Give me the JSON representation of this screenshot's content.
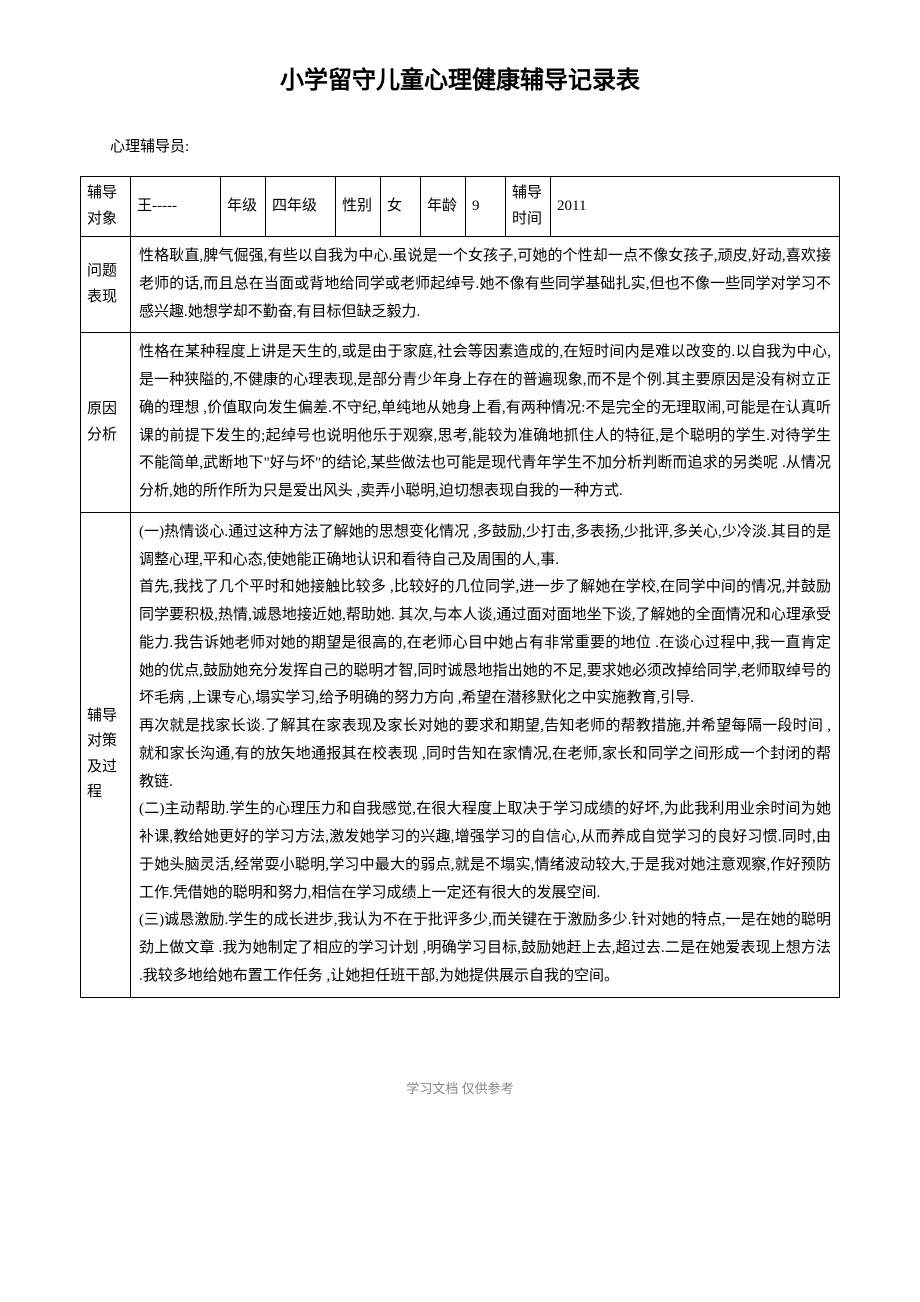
{
  "title": "小学留守儿童心理健康辅导记录表",
  "counselor_label": "心理辅导员:",
  "header": {
    "labels": {
      "subject": "辅导对象",
      "grade": "年级",
      "gender": "性别",
      "age": "年龄",
      "time": "辅导时间"
    },
    "values": {
      "subject": "王-----",
      "grade": "四年级",
      "gender": "女",
      "age": "9",
      "time": "2011"
    }
  },
  "rows": [
    {
      "label": "问题表现",
      "content": "性格耿直,脾气倔强,有些以自我为中心.虽说是一个女孩子,可她的个性却一点不像女孩子,顽皮,好动,喜欢接老师的话,而且总在当面或背地给同学或老师起绰号.她不像有些同学基础扎实,但也不像一些同学对学习不感兴趣.她想学却不勤奋,有目标但缺乏毅力."
    },
    {
      "label": "原因分析",
      "content": "性格在某种程度上讲是天生的,或是由于家庭,社会等因素造成的,在短时间内是难以改变的.以自我为中心,是一种狭隘的,不健康的心理表现,是部分青少年身上存在的普遍现象,而不是个例.其主要原因是没有树立正确的理想 ,价值取向发生偏差.不守纪,单纯地从她身上看,有两种情况:不是完全的无理取闹,可能是在认真听课的前提下发生的;起绰号也说明他乐于观察,思考,能较为准确地抓住人的特征,是个聪明的学生.对待学生不能简单,武断地下\"好与坏\"的结论,某些做法也可能是现代青年学生不加分析判断而追求的另类呢 .从情况分析,她的所作所为只是爱出风头 ,卖弄小聪明,迫切想表现自我的一种方式."
    },
    {
      "label": "辅导对策及过程",
      "content": "(一)热情谈心.通过这种方法了解她的思想变化情况 ,多鼓励,少打击,多表扬,少批评,多关心,少冷淡.其目的是调整心理,平和心态,使她能正确地认识和看待自己及周围的人,事.\n首先,我找了几个平时和她接触比较多 ,比较好的几位同学,进一步了解她在学校,在同学中间的情况,并鼓励同学要积极,热情,诚恳地接近她,帮助她. 其次,与本人谈,通过面对面地坐下谈,了解她的全面情况和心理承受能力.我告诉她老师对她的期望是很高的,在老师心目中她占有非常重要的地位 .在谈心过程中,我一直肯定她的优点,鼓励她充分发挥自己的聪明才智,同时诚恳地指出她的不足,要求她必须改掉给同学,老师取绰号的坏毛病 ,上课专心,塌实学习,给予明确的努力方向 ,希望在潜移默化之中实施教育,引导.\n再次就是找家长谈.了解其在家表现及家长对她的要求和期望,告知老师的帮教措施,并希望每隔一段时间 ,就和家长沟通,有的放矢地通报其在校表现 ,同时告知在家情况,在老师,家长和同学之间形成一个封闭的帮教链.\n(二)主动帮助.学生的心理压力和自我感觉,在很大程度上取决于学习成绩的好坏,为此我利用业余时间为她补课,教给她更好的学习方法,激发她学习的兴趣,增强学习的自信心,从而养成自觉学习的良好习惯.同时,由于她头脑灵活,经常耍小聪明,学习中最大的弱点,就是不塌实,情绪波动较大,于是我对她注意观察,作好预防工作.凭借她的聪明和努力,相信在学习成绩上一定还有很大的发展空间.\n(三)诚恳激励.学生的成长进步,我认为不在于批评多少,而关键在于激励多少.针对她的特点,一是在她的聪明劲上做文章 .我为她制定了相应的学习计划 ,明确学习目标,鼓励她赶上去,超过去.二是在她爱表现上想方法 .我较多地给她布置工作任务 ,让她担任班干部,为她提供展示自我的空间。"
    }
  ],
  "footer": "学习文档 仅供参考"
}
